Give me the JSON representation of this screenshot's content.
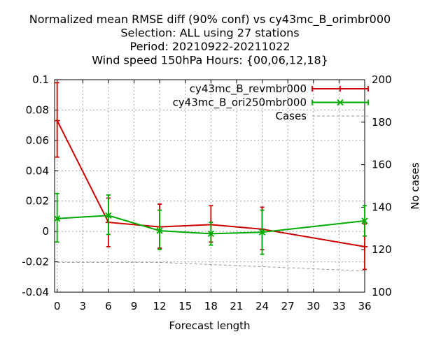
{
  "chart_data": {
    "type": "line",
    "title_lines": [
      "Normalized mean RMSE diff (90% conf) vs cy43mc_B_orimbr000",
      "Selection: ALL using    27 stations",
      "Period: 20210922-20211022",
      "Wind speed 150hPa   Hours: {00,06,12,18}"
    ],
    "xlabel": "Forecast length",
    "ylabel": "",
    "y2label": "No cases",
    "xlim": [
      -0.3,
      36
    ],
    "ylim": [
      -0.04,
      0.1
    ],
    "y2lim": [
      100,
      200
    ],
    "xticks": [
      "0",
      "3",
      "6",
      "9",
      "12",
      "15",
      "18",
      "21",
      "24",
      "27",
      "30",
      "33",
      "36"
    ],
    "yticks": [
      "-0.04",
      "-0.02",
      "0",
      "0.02",
      "0.04",
      "0.06",
      "0.08",
      "0.1"
    ],
    "y2ticks": [
      "100",
      "120",
      "140",
      "160",
      "180",
      "200"
    ],
    "grid": true,
    "legend_position": "top-right",
    "series": [
      {
        "name": "cy43mc_B_revmbr000",
        "color": "#cc0000",
        "marker": "plus",
        "axis": "y",
        "x": [
          0,
          6,
          12,
          18,
          24,
          36
        ],
        "values": [
          0.073,
          0.006,
          0.003,
          0.0045,
          0.0015,
          -0.01
        ],
        "err_low": [
          0.049,
          -0.01,
          -0.011,
          -0.007,
          -0.012,
          -0.025
        ],
        "err_high": [
          0.098,
          0.022,
          0.018,
          0.017,
          0.016,
          0.005
        ]
      },
      {
        "name": "cy43mc_B_ori250mbr000",
        "color": "#00aa00",
        "marker": "x",
        "axis": "y",
        "x": [
          0,
          6,
          12,
          18,
          24,
          36
        ],
        "values": [
          0.0085,
          0.0105,
          0.0005,
          -0.0015,
          -0.0005,
          0.007
        ],
        "err_low": [
          -0.007,
          -0.002,
          -0.012,
          -0.009,
          -0.015,
          -0.003
        ],
        "err_high": [
          0.025,
          0.024,
          0.014,
          0.006,
          0.014,
          0.017
        ]
      },
      {
        "name": "Cases",
        "color": "#999999",
        "marker": "none",
        "axis": "y2",
        "x": [
          0,
          6,
          12,
          18,
          24,
          30,
          36
        ],
        "values": [
          114,
          114,
          114,
          113,
          112,
          111,
          110
        ]
      }
    ]
  }
}
